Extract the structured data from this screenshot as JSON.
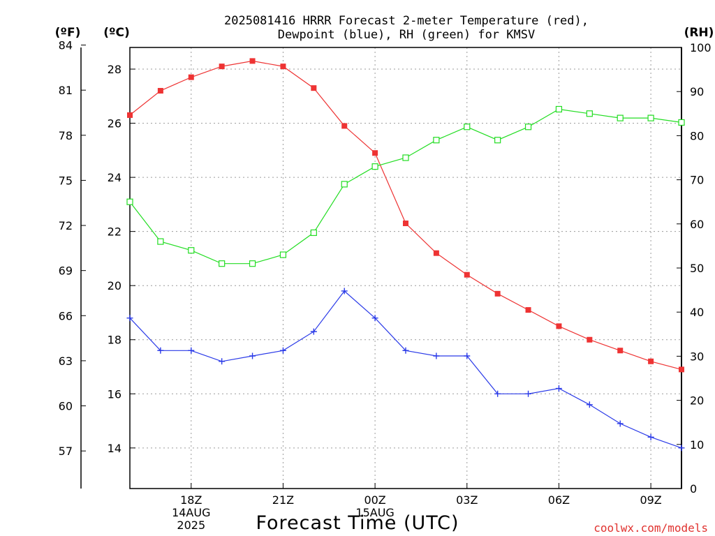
{
  "chart_data": {
    "type": "line",
    "title_line1": "2025081416 HRRR Forecast 2-meter Temperature (red),",
    "title_line2": "Dewpoint (blue), RH (green) for KMSV",
    "unit_f": "(ºF)",
    "unit_c": "(ºC)",
    "unit_rh": "(RH)",
    "xlabel": "Forecast Time (UTC)",
    "credit": "coolwx.com/models",
    "x_hours": [
      0,
      1,
      2,
      3,
      4,
      5,
      6,
      7,
      8,
      9,
      10,
      11,
      12,
      13,
      14,
      15,
      16,
      17,
      18
    ],
    "x_range": [
      0,
      18
    ],
    "x_ticks": [
      {
        "hour": 2,
        "lines": [
          "18Z",
          "14AUG",
          "2025"
        ]
      },
      {
        "hour": 5,
        "lines": [
          "21Z"
        ]
      },
      {
        "hour": 8,
        "lines": [
          "00Z",
          "15AUG"
        ]
      },
      {
        "hour": 11,
        "lines": [
          "03Z"
        ]
      },
      {
        "hour": 14,
        "lines": [
          "06Z"
        ]
      },
      {
        "hour": 17,
        "lines": [
          "09Z"
        ]
      }
    ],
    "c_axis": {
      "range": [
        12.5,
        28.8
      ],
      "ticks": [
        14,
        16,
        18,
        20,
        22,
        24,
        26,
        28
      ]
    },
    "f_axis": {
      "ticks": [
        57,
        60,
        63,
        66,
        69,
        72,
        75,
        78,
        81,
        84
      ]
    },
    "rh_axis": {
      "range": [
        0,
        100
      ],
      "ticks": [
        0,
        10,
        20,
        30,
        40,
        50,
        60,
        70,
        80,
        90,
        100
      ]
    },
    "series": [
      {
        "name": "Temperature",
        "color": "#ee3333",
        "marker": "filled-square",
        "axis": "c",
        "values": [
          26.3,
          27.2,
          27.7,
          28.1,
          28.3,
          28.1,
          27.3,
          25.9,
          24.9,
          22.3,
          21.2,
          20.4,
          19.7,
          19.1,
          18.5,
          18.0,
          17.6,
          17.2,
          16.9
        ]
      },
      {
        "name": "Dewpoint",
        "color": "#2a3ae8",
        "marker": "plus",
        "axis": "c",
        "values": [
          18.8,
          17.6,
          17.6,
          17.2,
          17.4,
          17.6,
          18.3,
          19.8,
          18.8,
          17.6,
          17.4,
          17.4,
          16.0,
          16.0,
          16.2,
          15.6,
          14.9,
          14.4,
          14.0
        ]
      },
      {
        "name": "RH",
        "color": "#22dd22",
        "marker": "open-square",
        "axis": "rh",
        "values": [
          65,
          56,
          54,
          51,
          51,
          53,
          58,
          69,
          73,
          75,
          79,
          82,
          79,
          82,
          86,
          85,
          84,
          84,
          83
        ]
      }
    ]
  }
}
